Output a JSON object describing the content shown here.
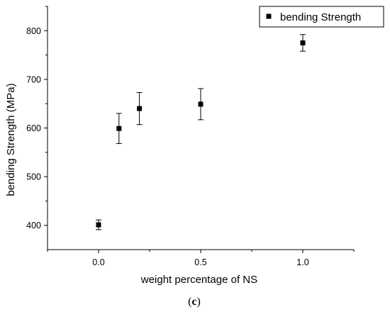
{
  "chart_data": {
    "type": "scatter",
    "xlabel": "weight percentage of NS",
    "ylabel": "bending Strength (MPa)",
    "xlim": [
      -0.25,
      1.25
    ],
    "ylim": [
      350,
      850
    ],
    "xticks": [
      0.0,
      0.5,
      1.0
    ],
    "xtick_labels": [
      "0.0",
      "0.5",
      "1.0"
    ],
    "yticks": [
      400,
      500,
      600,
      700,
      800
    ],
    "ytick_labels": [
      "400",
      "500",
      "600",
      "700",
      "800"
    ],
    "grid": false,
    "legend_position": "top-right",
    "marker": "square",
    "color": "#000000",
    "series": [
      {
        "name": "bending Strength",
        "x": [
          0.0,
          0.1,
          0.2,
          0.5,
          1.0
        ],
        "y": [
          401,
          599,
          640,
          649,
          775
        ],
        "error": [
          10,
          31,
          33,
          32,
          17
        ]
      }
    ]
  },
  "caption": {
    "open": "(",
    "letter": "c",
    "close": ")"
  }
}
